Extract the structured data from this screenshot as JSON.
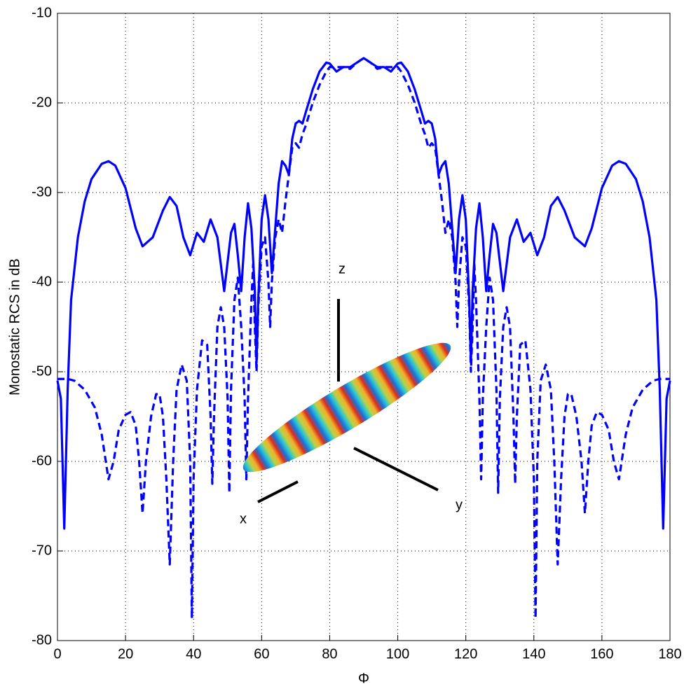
{
  "chart_data": {
    "type": "line",
    "xlabel": "Φ",
    "ylabel": "Monostatic RCS in dB",
    "xlim": [
      0,
      180
    ],
    "xticks": [
      0,
      20,
      40,
      60,
      80,
      100,
      120,
      140,
      160,
      180
    ],
    "ylim": [
      -80,
      -10
    ],
    "yticks": [
      -80,
      -70,
      -60,
      -50,
      -40,
      -30,
      -20,
      -10
    ],
    "grid": true,
    "annotations": [
      "z",
      "x",
      "y"
    ],
    "series": [
      {
        "color": "#0000ff",
        "dashed": false,
        "x": [
          0,
          1,
          2,
          3,
          4,
          6,
          8,
          10,
          13,
          15,
          17,
          20,
          23,
          25,
          28,
          31,
          33,
          35,
          37,
          39,
          41,
          43,
          45,
          47,
          49,
          51,
          52,
          53,
          54,
          55,
          56,
          57,
          58,
          58.5,
          59,
          60,
          61,
          62,
          63,
          64,
          65,
          66,
          67,
          68,
          69,
          70,
          71,
          72,
          73,
          75,
          77,
          79,
          80,
          82,
          84,
          86,
          88,
          90,
          92,
          94,
          96,
          98,
          100,
          101,
          103,
          105,
          107,
          108,
          109,
          110,
          111,
          112,
          113,
          114,
          115,
          116,
          117,
          118,
          119,
          120,
          121,
          121.5,
          122,
          123,
          124,
          125,
          126,
          127,
          128,
          129,
          131,
          133,
          135,
          137,
          139,
          141,
          143,
          145,
          147,
          149,
          152,
          155,
          157,
          160,
          163,
          165,
          167,
          170,
          172,
          174,
          176,
          177,
          178,
          179,
          180
        ],
        "values": [
          -51,
          -53,
          -67.5,
          -52,
          -42,
          -35,
          -31,
          -28.5,
          -26.8,
          -26.5,
          -27,
          -29.5,
          -34,
          -36,
          -35,
          -32,
          -30.5,
          -31.5,
          -35,
          -37,
          -34.5,
          -35.5,
          -33,
          -35,
          -41,
          -34.5,
          -33.5,
          -37,
          -41,
          -35,
          -31.2,
          -34,
          -41,
          -49,
          -42,
          -33,
          -30.3,
          -33,
          -39,
          -34,
          -29,
          -26.5,
          -27,
          -28,
          -24,
          -22.3,
          -22,
          -22.3,
          -21,
          -18.5,
          -16.5,
          -15.5,
          -15.6,
          -16.5,
          -16,
          -16,
          -15.5,
          -15,
          -15.5,
          -16,
          -16,
          -16.5,
          -15.6,
          -15.5,
          -16.5,
          -18.5,
          -21,
          -22.3,
          -22,
          -22.3,
          -24,
          -28,
          -27,
          -26.5,
          -29,
          -34,
          -39,
          -33,
          -30.3,
          -33,
          -42,
          -49,
          -41,
          -34,
          -31.2,
          -35,
          -41,
          -37,
          -33.5,
          -34.5,
          -41,
          -35,
          -33,
          -35.5,
          -34.5,
          -37,
          -35,
          -31.5,
          -30.5,
          -32,
          -35,
          -36,
          -34,
          -29.5,
          -27,
          -26.5,
          -26.8,
          -28.5,
          -31,
          -35,
          -42,
          -52,
          -67.5,
          -53,
          -51
        ]
      },
      {
        "color": "#0000ff",
        "dashed": true,
        "x": [
          0,
          3,
          5,
          8,
          11,
          13,
          15,
          16.5,
          18,
          20,
          21.5,
          23,
          24,
          25,
          26,
          27.5,
          29,
          30,
          31,
          32,
          33,
          34,
          35,
          36.5,
          38,
          39,
          39.5,
          40,
          41,
          42.5,
          44,
          45,
          45.5,
          46,
          47,
          48,
          49,
          50,
          50.5,
          51,
          52,
          53,
          54,
          55,
          55.5,
          56,
          57,
          57.5,
          58,
          58.5,
          59,
          60,
          61,
          62,
          62.5,
          63,
          64,
          65,
          66,
          67,
          68,
          69,
          70,
          71,
          72,
          73,
          75,
          77,
          79,
          80,
          82,
          84,
          86,
          88,
          90,
          92,
          94,
          96,
          98,
          100,
          101,
          103,
          105,
          107,
          108,
          109,
          110,
          111,
          112,
          113,
          114,
          115,
          116,
          117,
          117.5,
          118,
          119,
          120,
          121,
          121.5,
          122,
          122.5,
          123,
          124,
          124.5,
          125,
          126,
          127,
          128,
          129,
          129.5,
          130,
          131,
          132,
          133,
          134,
          134.5,
          135,
          136,
          137.5,
          139,
          140,
          140.5,
          141,
          142,
          143.5,
          145,
          146,
          147,
          148,
          149,
          150,
          151,
          152.5,
          154,
          155,
          156,
          157,
          158.5,
          160,
          162,
          163.5,
          165,
          167,
          169,
          172,
          175,
          177,
          180
        ],
        "values": [
          -50.8,
          -50.8,
          -51,
          -52,
          -54,
          -57,
          -62,
          -60,
          -56.5,
          -54.8,
          -54.5,
          -56,
          -60,
          -65.8,
          -60,
          -55,
          -52.5,
          -52.5,
          -55,
          -62,
          -71.5,
          -60,
          -52,
          -49.2,
          -51,
          -60,
          -77.5,
          -62,
          -52,
          -46.5,
          -47,
          -55,
          -62.5,
          -55,
          -45,
          -42.8,
          -45,
          -53,
          -63.5,
          -52,
          -42,
          -39.5,
          -45,
          -53,
          -62,
          -53,
          -42,
          -38,
          -45,
          -50,
          -43,
          -36,
          -35,
          -40,
          -45,
          -40,
          -35,
          -33,
          -34.5,
          -31,
          -28,
          -25,
          -24.5,
          -25,
          -23.5,
          -22.5,
          -20,
          -18,
          -16.5,
          -16,
          -16,
          -16,
          -16.2,
          -15.5,
          -15,
          -15.5,
          -16.2,
          -16,
          -16,
          -16,
          -16.5,
          -18,
          -20,
          -22.5,
          -23.5,
          -25,
          -24.5,
          -25,
          -28,
          -31,
          -34.5,
          -33,
          -35,
          -40,
          -45,
          -40,
          -35,
          -36,
          -43,
          -50,
          -45,
          -38,
          -42,
          -53,
          -62,
          -53,
          -45,
          -39.5,
          -42,
          -52,
          -63.5,
          -53,
          -45,
          -42.8,
          -45,
          -55,
          -62.5,
          -55,
          -47,
          -46.5,
          -52,
          -62,
          -77.5,
          -60,
          -51,
          -49.2,
          -52,
          -60,
          -71.5,
          -62,
          -55,
          -52.5,
          -52.5,
          -55,
          -60,
          -65.8,
          -60,
          -56,
          -54.5,
          -54.8,
          -56.5,
          -60,
          -62,
          -57,
          -54,
          -52,
          -51,
          -50.8,
          -50.8
        ]
      }
    ]
  }
}
